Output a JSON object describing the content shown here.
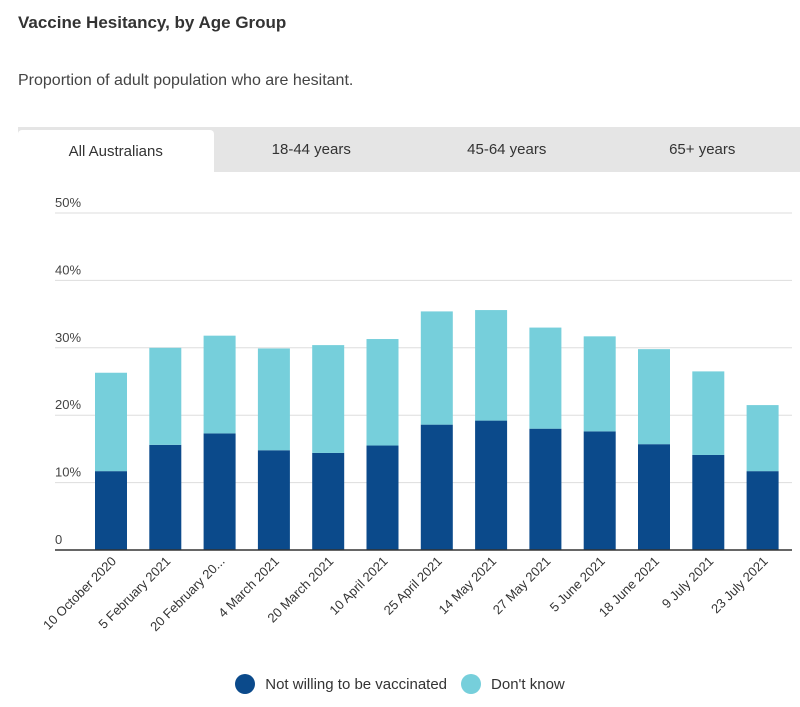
{
  "header": {
    "title": "Vaccine Hesitancy, by Age Group",
    "subtitle": "Proportion of adult population who are hesitant."
  },
  "tabs": [
    {
      "label": "All Australians",
      "active": true
    },
    {
      "label": "18-44 years",
      "active": false
    },
    {
      "label": "45-64 years",
      "active": false
    },
    {
      "label": "65+ years",
      "active": false
    }
  ],
  "colors": {
    "not_willing": "#0b4a8b",
    "dont_know": "#76cfdb"
  },
  "chart_data": {
    "type": "bar",
    "stacked": true,
    "categories": [
      "10 October 2020",
      "5 February 2021",
      "20 February 20...",
      "4 March 2021",
      "20 March 2021",
      "10 April 2021",
      "25 April 2021",
      "14 May 2021",
      "27 May 2021",
      "5 June 2021",
      "18 June 2021",
      "9 July 2021",
      "23 July 2021"
    ],
    "series": [
      {
        "name": "Not willing to be vaccinated",
        "values": [
          11.7,
          15.6,
          17.3,
          14.8,
          14.4,
          15.5,
          18.6,
          19.2,
          18.0,
          17.6,
          15.7,
          14.1,
          11.7
        ]
      },
      {
        "name": "Don't know",
        "values": [
          14.6,
          14.4,
          14.5,
          15.1,
          16.0,
          15.8,
          16.8,
          16.4,
          15.0,
          14.1,
          14.1,
          12.4,
          9.8
        ]
      }
    ],
    "yticks": [
      "0",
      "10%",
      "20%",
      "30%",
      "40%",
      "50%"
    ],
    "ylim": [
      0,
      50
    ],
    "grid": true,
    "legend_position": "bottom"
  }
}
